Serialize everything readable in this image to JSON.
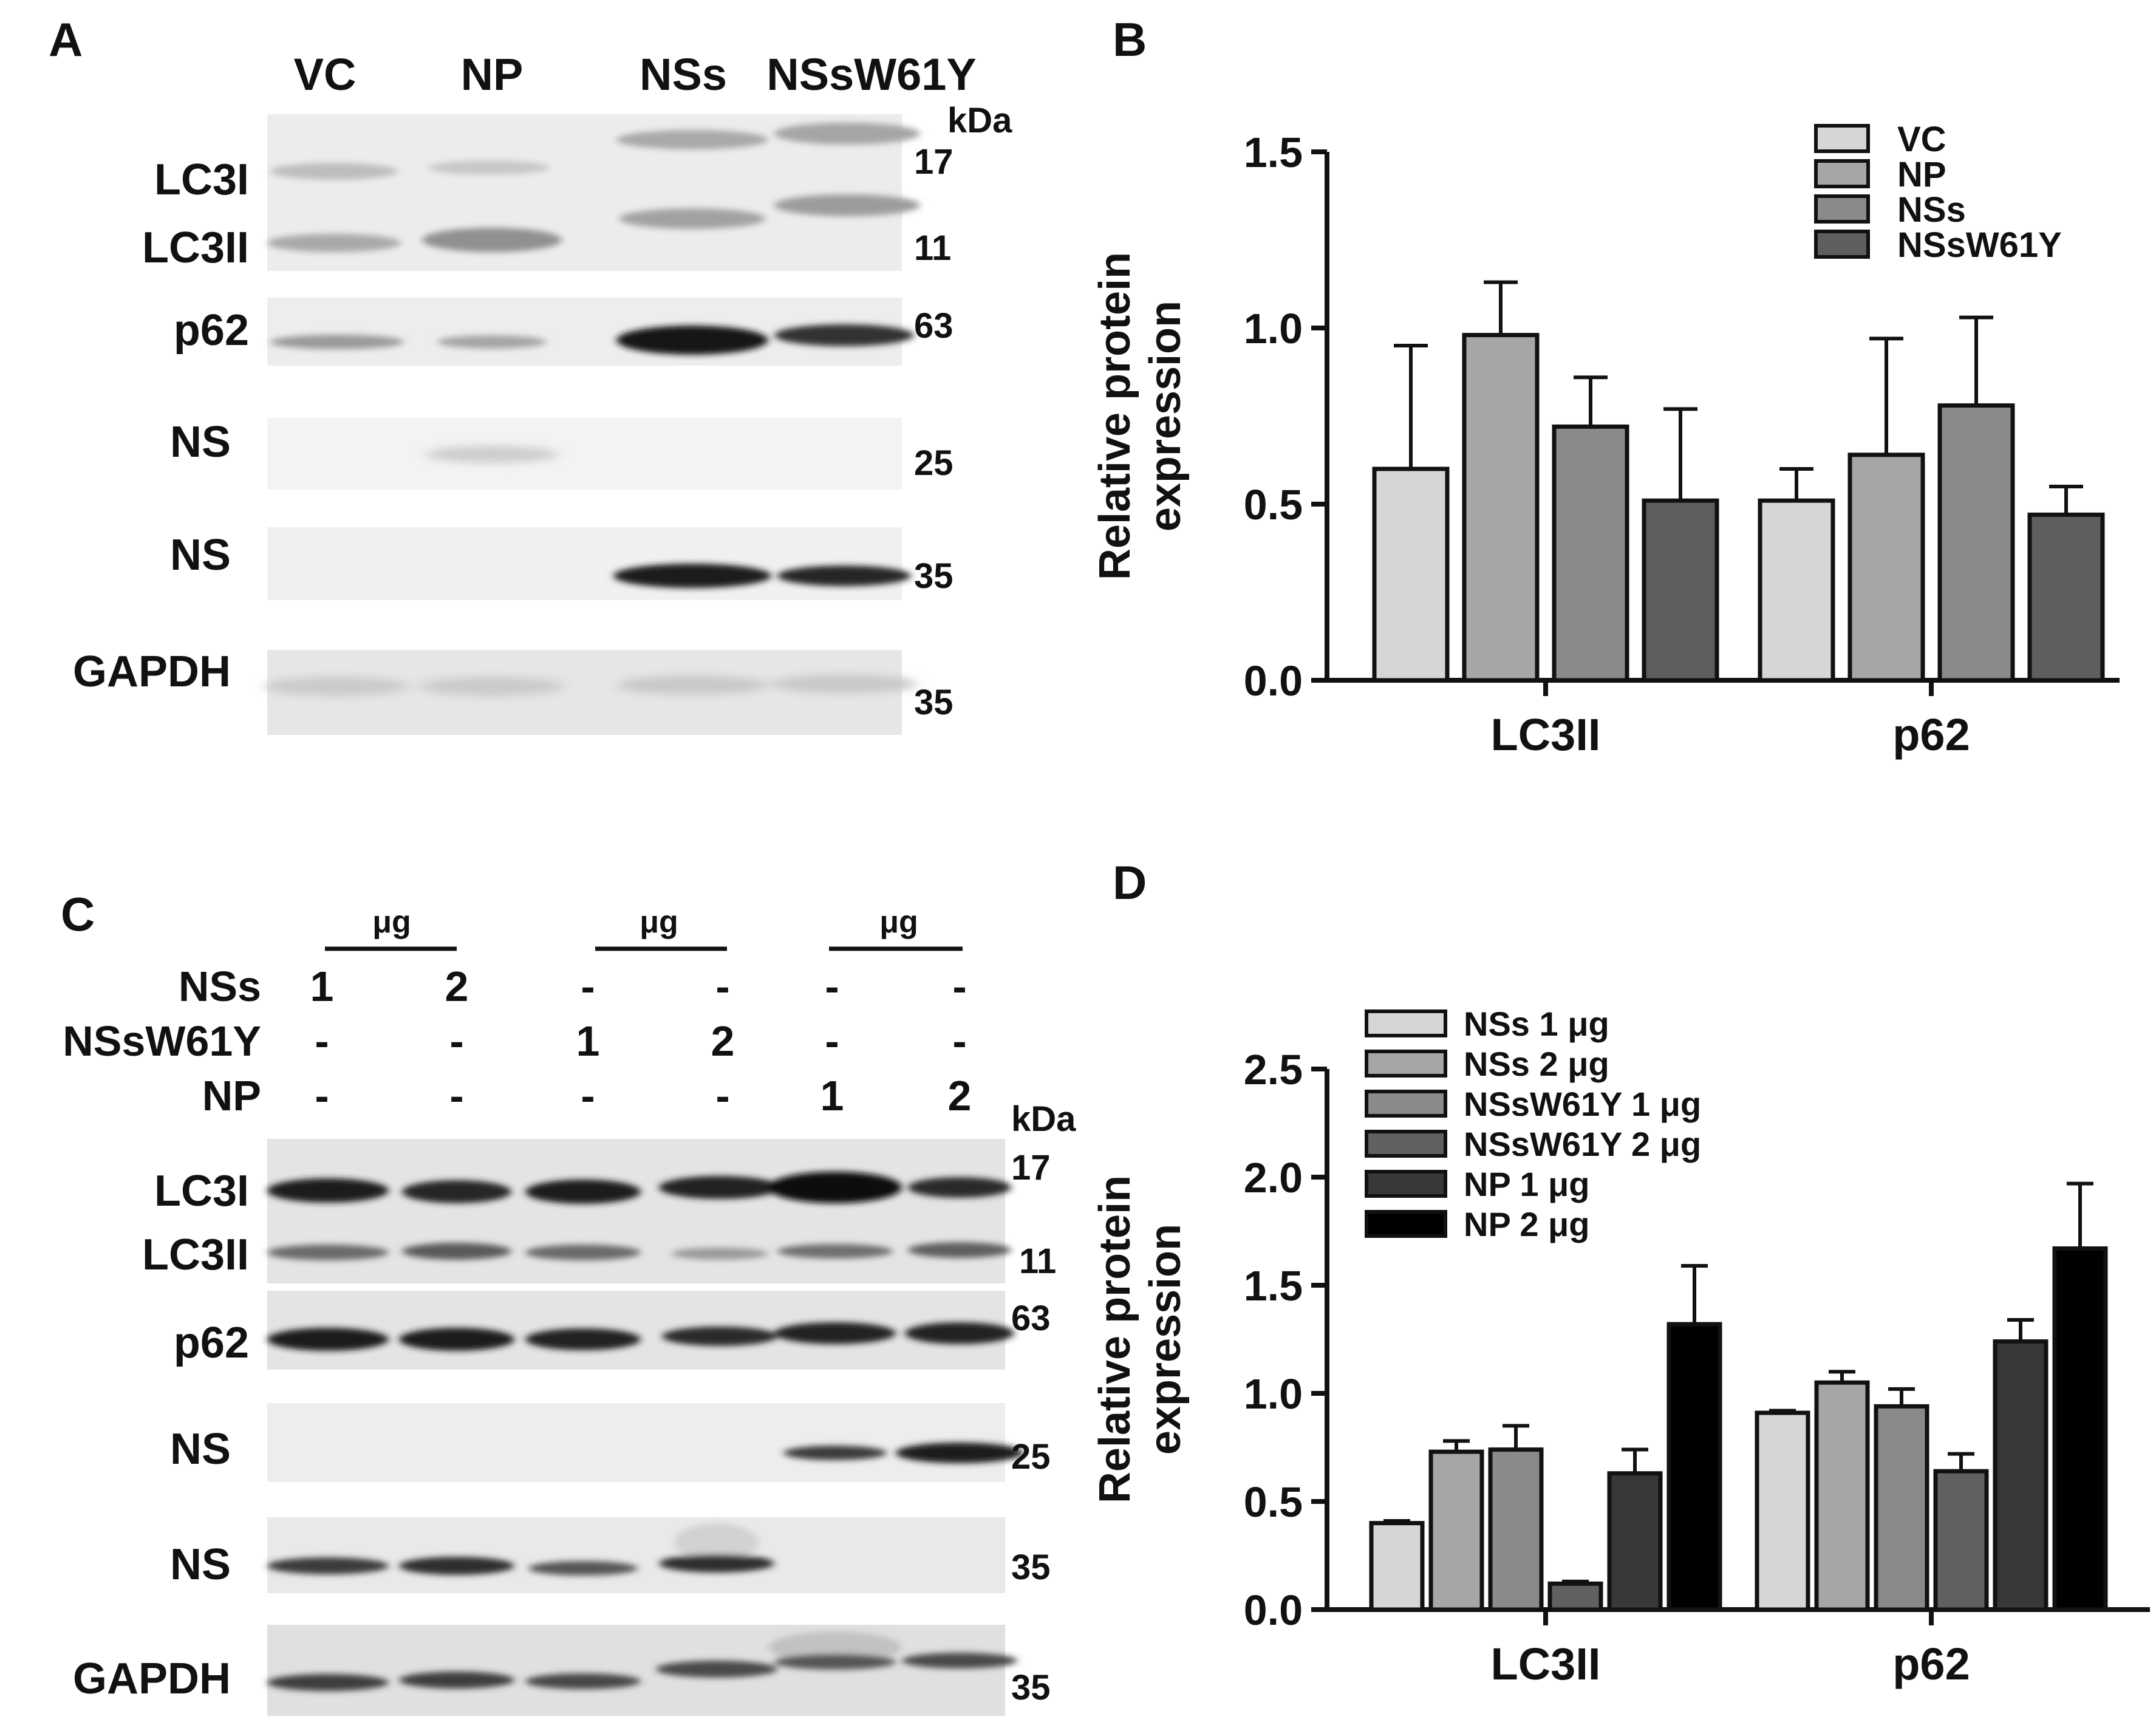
{
  "panels": {
    "A": {
      "letter": "A",
      "lanes": [
        "VC",
        "NP",
        "NSs",
        "NSsW61Y"
      ],
      "kda_label": "kDa",
      "blots": [
        {
          "labels": [
            "LC3I",
            "LC3II"
          ],
          "markers": [
            "17",
            "11"
          ]
        },
        {
          "labels": [
            "p62"
          ],
          "markers": [
            "63"
          ]
        },
        {
          "labels": [
            "NS"
          ],
          "markers": [
            "25"
          ]
        },
        {
          "labels": [
            "NS"
          ],
          "markers": [
            "35"
          ]
        },
        {
          "labels": [
            "GAPDH"
          ],
          "markers": [
            "35"
          ]
        }
      ]
    },
    "C": {
      "letter": "C",
      "unit": "μg",
      "rows": [
        {
          "name": "NSs",
          "values": [
            "1",
            "2",
            "-",
            "-",
            "-",
            "-"
          ]
        },
        {
          "name": "NSsW61Y",
          "values": [
            "-",
            "-",
            "1",
            "2",
            "-",
            "-"
          ]
        },
        {
          "name": "NP",
          "values": [
            "-",
            "-",
            "-",
            "-",
            "1",
            "2"
          ]
        }
      ],
      "kda_label": "kDa",
      "blots": [
        {
          "labels": [
            "LC3I",
            "LC3II"
          ],
          "markers": [
            "17",
            "11"
          ]
        },
        {
          "labels": [
            "p62"
          ],
          "markers": [
            "63"
          ]
        },
        {
          "labels": [
            "NS"
          ],
          "markers": [
            "25"
          ]
        },
        {
          "labels": [
            "NS"
          ],
          "markers": [
            "35"
          ]
        },
        {
          "labels": [
            "GAPDH"
          ],
          "markers": [
            "35"
          ]
        }
      ]
    }
  },
  "chart_data": [
    {
      "panel": "B",
      "type": "bar",
      "title": "",
      "xlabel": "",
      "ylabel": "Relative protein expression",
      "ylabel_lines": [
        "Relative protein",
        "expression"
      ],
      "ylim": [
        0,
        1.5
      ],
      "yticks": [
        "0.0",
        "0.5",
        "1.0",
        "1.5"
      ],
      "categories": [
        "LC3II",
        "p62"
      ],
      "legend_position": "top-right",
      "series": [
        {
          "name": "VC",
          "color": "#d6d6d6",
          "values": [
            0.6,
            0.51
          ],
          "errors": [
            0.35,
            0.09
          ]
        },
        {
          "name": "NP",
          "color": "#a6a6a6",
          "values": [
            0.98,
            0.64
          ],
          "errors": [
            0.15,
            0.33
          ]
        },
        {
          "name": "NSs",
          "color": "#8a8a8a",
          "values": [
            0.72,
            0.78
          ],
          "errors": [
            0.14,
            0.25
          ]
        },
        {
          "name": "NSsW61Y",
          "color": "#5e5e5e",
          "values": [
            0.51,
            0.47
          ],
          "errors": [
            0.26,
            0.08
          ]
        }
      ]
    },
    {
      "panel": "D",
      "type": "bar",
      "title": "",
      "xlabel": "",
      "ylabel": "Relative protein expression",
      "ylabel_lines": [
        "Relative protein",
        "expression"
      ],
      "ylim": [
        0,
        2.5
      ],
      "yticks": [
        "0.0",
        "0.5",
        "1.0",
        "1.5",
        "2.0",
        "2.5"
      ],
      "categories": [
        "LC3II",
        "p62"
      ],
      "legend_position": "top-left",
      "series": [
        {
          "name": "NSs 1 μg",
          "color": "#d6d6d6",
          "values": [
            0.4,
            0.91
          ],
          "errors": [
            0.01,
            0.01
          ]
        },
        {
          "name": "NSs 2 μg",
          "color": "#a6a6a6",
          "values": [
            0.73,
            1.05
          ],
          "errors": [
            0.05,
            0.05
          ]
        },
        {
          "name": "NSsW61Y 1 μg",
          "color": "#8a8a8a",
          "values": [
            0.74,
            0.94
          ],
          "errors": [
            0.11,
            0.08
          ]
        },
        {
          "name": "NSsW61Y 2 μg",
          "color": "#606060",
          "values": [
            0.12,
            0.64
          ],
          "errors": [
            0.01,
            0.08
          ]
        },
        {
          "name": "NP 1 μg",
          "color": "#383838",
          "values": [
            0.63,
            1.24
          ],
          "errors": [
            0.11,
            0.1
          ]
        },
        {
          "name": "NP 2 μg",
          "color": "#000000",
          "values": [
            1.32,
            1.67
          ],
          "errors": [
            0.27,
            0.3
          ]
        }
      ]
    }
  ]
}
